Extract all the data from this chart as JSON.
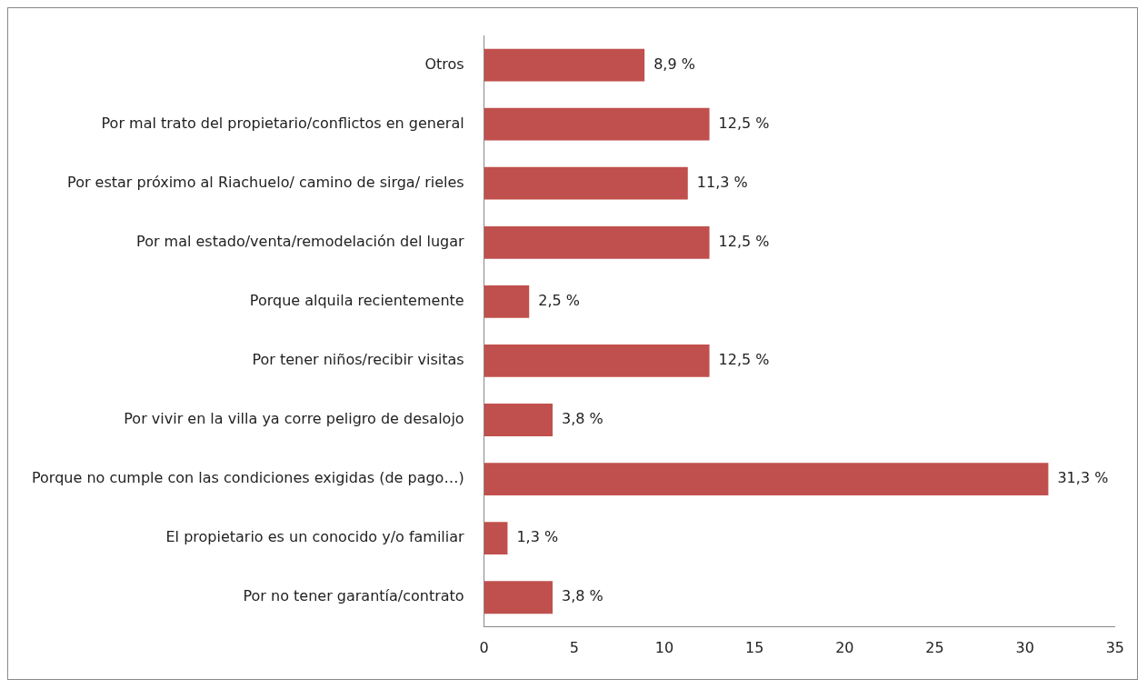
{
  "chart_data": {
    "type": "bar",
    "orientation": "horizontal",
    "categories": [
      "Otros",
      "Por mal trato del propietario/conflictos en general",
      "Por estar próximo al Riachuelo/ camino de sirga/ rieles",
      "Por mal estado/venta/remodelación del lugar",
      "Porque alquila recientemente",
      "Por tener niños/recibir visitas",
      "Por vivir en la villa ya corre peligro de desalojo",
      "Porque no cumple con las condiciones exigidas (de pago…)",
      "El propietario es un conocido y/o familiar",
      "Por no tener garantía/contrato"
    ],
    "values": [
      8.9,
      12.5,
      11.3,
      12.5,
      2.5,
      12.5,
      3.8,
      31.3,
      1.3,
      3.8
    ],
    "value_labels": [
      "8,9 %",
      "12,5 %",
      "11,3 %",
      "12,5 %",
      "2,5 %",
      "12,5 %",
      "3,8 %",
      "31,3 %",
      "1,3 %",
      "3,8 %"
    ],
    "color": "#c0504d",
    "xlim": [
      0,
      35
    ],
    "xticks": [
      0,
      5,
      10,
      15,
      20,
      25,
      30,
      35
    ],
    "grid": false,
    "legend": false
  }
}
